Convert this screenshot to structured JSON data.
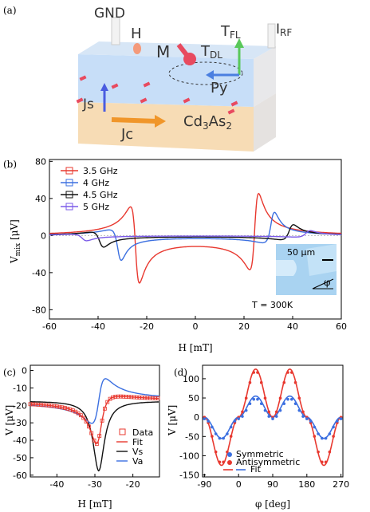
{
  "panels": {
    "a": "(a)",
    "b": "(b)",
    "c": "(c)",
    "d": "(d)"
  },
  "schematic": {
    "gnd": "GND",
    "h": "H",
    "m": "M",
    "tfl": "T",
    "tfl_sub": "FL",
    "tdl": "T",
    "tdl_sub": "DL",
    "irf": "I",
    "irf_sub": "RF",
    "js": "Js",
    "py": "Py",
    "jc": "Jc",
    "material": "Cd",
    "material_sub1": "3",
    "material_mid": "As",
    "material_sub2": "2"
  },
  "colors": {
    "red": "#e8382f",
    "blue": "#3b6fe0",
    "black": "#111111",
    "purple": "#7b5be8",
    "film": "#c7def8",
    "substrate": "#f7dcb5"
  },
  "chart_data": [
    {
      "type": "line",
      "panel": "b",
      "xlabel": "H [mT]",
      "ylabel_main": "V",
      "ylabel_sub": "mix",
      "ylabel_unit": "[μV]",
      "xlim": [
        -60,
        60
      ],
      "ylim": [
        -90,
        82
      ],
      "xticks": [
        -60,
        -40,
        -20,
        0,
        20,
        40,
        60
      ],
      "yticks": [
        80,
        40,
        0,
        -40,
        -80
      ],
      "legend": "top-left",
      "annotation": "T = 300K",
      "inset_scale": "50 μm",
      "inset_angle": "φ",
      "series": [
        {
          "name": "3.5 GHz",
          "color": "#e8382f",
          "f0": 24.5,
          "w": 1.8,
          "amp": 80,
          "a": 0.72,
          "s": 0.18
        },
        {
          "name": "4 GHz",
          "color": "#3b6fe0",
          "f0": 31.5,
          "w": 2.0,
          "amp": 38,
          "a": 0.5,
          "s": 0.5
        },
        {
          "name": "4.5 GHz",
          "color": "#111111",
          "f0": 39.0,
          "w": 2.3,
          "amp": 18,
          "a": 0.55,
          "s": 0.45
        },
        {
          "name": "5 GHz",
          "color": "#7b5be8",
          "f0": 46.0,
          "w": 2.6,
          "amp": 8,
          "a": 0.5,
          "s": 0.5
        }
      ]
    },
    {
      "type": "line",
      "panel": "c",
      "xlabel": "H [mT]",
      "ylabel": "V [μV]",
      "xlim": [
        -47,
        -13
      ],
      "ylim": [
        -61,
        3
      ],
      "xticks": [
        -40,
        -30,
        -20
      ],
      "yticks": [
        0,
        -10,
        -20,
        -30,
        -40,
        -50,
        -60
      ],
      "legend": "bottom-right",
      "f0": -29.0,
      "w": 1.8,
      "s_amp": -40.0,
      "a_amp": 16.0,
      "offset": -17.5,
      "series": [
        {
          "name": "Data",
          "color": "#e8382f",
          "style": "markers"
        },
        {
          "name": "Fit",
          "color": "#e8382f",
          "style": "line"
        },
        {
          "name": "Vs",
          "color": "#111111",
          "style": "line"
        },
        {
          "name": "Va",
          "color": "#3b6fe0",
          "style": "line"
        }
      ]
    },
    {
      "type": "scatter",
      "panel": "d",
      "xlabel": "φ  [deg]",
      "ylabel": "V [μV]",
      "xlim": [
        -95,
        275
      ],
      "ylim": [
        -155,
        135
      ],
      "xticks": [
        -90,
        0,
        90,
        180,
        270
      ],
      "yticks": [
        100,
        50,
        0,
        -50,
        -100,
        -150
      ],
      "legend": "bottom-center",
      "series": [
        {
          "name": "Symmetric",
          "color": "#3b6fe0",
          "amp": 80
        },
        {
          "name": "Antisymmetric",
          "color": "#e8382f",
          "amp": 185
        },
        {
          "name": "Fit",
          "color": "#e8382f"
        }
      ]
    }
  ]
}
